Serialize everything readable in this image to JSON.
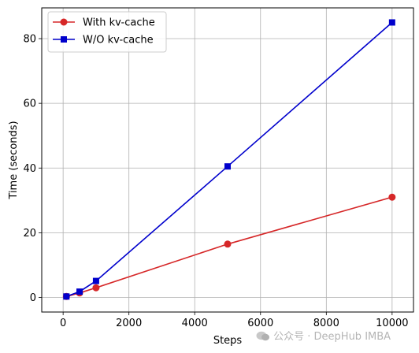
{
  "chart_data": {
    "type": "line",
    "xlabel": "Steps",
    "ylabel": "Time (seconds)",
    "xlim": [
      -650,
      10650
    ],
    "ylim": [
      -4.5,
      89.5
    ],
    "xticks": [
      0,
      2000,
      4000,
      6000,
      8000,
      10000
    ],
    "yticks": [
      0,
      20,
      40,
      60,
      80
    ],
    "grid": true,
    "legend": "top-left",
    "series": [
      {
        "name": "With kv-cache",
        "color": "#d62728",
        "marker": "circle",
        "x": [
          100,
          500,
          1000,
          5000,
          10000
        ],
        "y": [
          0.3,
          1.4,
          3.0,
          16.5,
          31.0
        ]
      },
      {
        "name": "W/O kv-cache",
        "color": "#0000cc",
        "marker": "square",
        "x": [
          100,
          500,
          1000,
          5000,
          10000
        ],
        "y": [
          0.3,
          1.8,
          5.1,
          40.5,
          85.0
        ]
      }
    ]
  },
  "watermark": {
    "text": "公众号 · DeepHub IMBA"
  }
}
